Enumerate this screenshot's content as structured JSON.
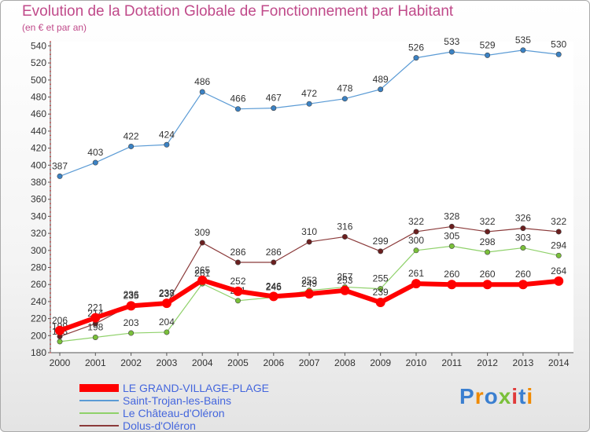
{
  "header": {
    "title": "Evolution de la Dotation Globale de Fonctionnement par Habitant",
    "subtitle": "(en € et par an)"
  },
  "brand": {
    "logo_text": "Proxiti",
    "colors": [
      "#3a7fd0",
      "#f08a00",
      "#3a7fd0",
      "#7ac03a",
      "#e03a3a",
      "#3a7fd0",
      "#f08a00"
    ]
  },
  "chart_data": {
    "type": "line",
    "x": [
      "2000",
      "2001",
      "2002",
      "2003",
      "2004",
      "2005",
      "2006",
      "2007",
      "2008",
      "2009",
      "2010",
      "2011",
      "2012",
      "2013",
      "2014"
    ],
    "ylim": [
      180,
      545
    ],
    "yticks": [
      180,
      200,
      220,
      240,
      260,
      280,
      300,
      320,
      340,
      360,
      380,
      400,
      420,
      440,
      460,
      480,
      500,
      520,
      540
    ],
    "grid": false,
    "legend_position": "bottom-left",
    "series": [
      {
        "name": "Saint-Trojan-les-Bains",
        "color": "#5b9bd5",
        "marker": "#3b82c4",
        "width": 1.2,
        "values": [
          387,
          403,
          422,
          424,
          486,
          466,
          467,
          472,
          478,
          489,
          526,
          533,
          529,
          535,
          530
        ],
        "labels": [
          "387",
          "403",
          "422",
          "424",
          "486",
          "466",
          "467",
          "472",
          "478",
          "489",
          "526",
          "533",
          "529",
          "535",
          "530"
        ]
      },
      {
        "name": "Dolus-d'Oléron",
        "color": "#8b3a3a",
        "marker": "#6b1f1f",
        "width": 1.2,
        "values": [
          199,
          214,
          236,
          237,
          309,
          286,
          286,
          310,
          316,
          299,
          322,
          328,
          322,
          326,
          322
        ],
        "labels": [
          "199",
          "214",
          "236",
          "237",
          "309",
          "286",
          "286",
          "310",
          "316",
          "299",
          "322",
          "328",
          "322",
          "326",
          "322"
        ]
      },
      {
        "name": "Le Château-d'Oléron",
        "color": "#8fd16a",
        "marker": "#7ac03a",
        "width": 1.2,
        "values": [
          193,
          198,
          203,
          204,
          261,
          241,
          245,
          253,
          257,
          255,
          300,
          305,
          298,
          303,
          294
        ],
        "labels": [
          "193",
          "198",
          "203",
          "204",
          "261",
          "241",
          "245",
          "253",
          "257",
          "255",
          "300",
          "305",
          "298",
          "303",
          "294"
        ]
      },
      {
        "name": "LE GRAND-VILLAGE-PLAGE",
        "color": "#ff0000",
        "marker": "#ff0000",
        "width": 6,
        "values": [
          206,
          221,
          235,
          238,
          265,
          252,
          246,
          249,
          253,
          239,
          261,
          260,
          260,
          260,
          264
        ],
        "labels": [
          "206",
          "221",
          "235",
          "238",
          "265",
          "252",
          "246",
          "249",
          "253",
          "239",
          "261",
          "260",
          "260",
          "260",
          "264"
        ]
      }
    ],
    "legend": [
      {
        "name": "LE GRAND-VILLAGE-PLAGE",
        "color": "#ff0000",
        "text_color": "#4466dd"
      },
      {
        "name": "Saint-Trojan-les-Bains",
        "color": "#5b9bd5",
        "text_color": "#4466dd"
      },
      {
        "name": "Le Château-d'Oléron",
        "color": "#8fd16a",
        "text_color": "#4466dd"
      },
      {
        "name": "Dolus-d'Oléron",
        "color": "#8b3a3a",
        "text_color": "#4466dd"
      }
    ]
  }
}
